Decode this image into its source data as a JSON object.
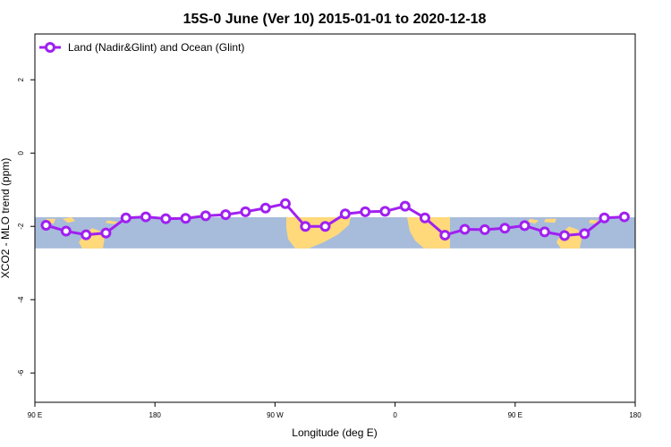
{
  "chart_data": {
    "type": "line",
    "title": "15S-0 June (Ver 10)   2015-01-01 to 2020-12-18",
    "xlabel": "Longitude (deg E)",
    "ylabel": "XCO2 - MLO trend (ppm)",
    "xlim": [
      90,
      450
    ],
    "ylim": [
      -6.8,
      3.25
    ],
    "x_ticks": [
      {
        "value": 90,
        "label": "90 E"
      },
      {
        "value": 162,
        "label": "180"
      },
      {
        "value": 234,
        "label": "90 W"
      },
      {
        "value": 306,
        "label": "0"
      },
      {
        "value": 378,
        "label": "90 E"
      },
      {
        "value": 450,
        "label": "180"
      }
    ],
    "y_ticks": [
      {
        "value": 2,
        "label": "2"
      },
      {
        "value": 0,
        "label": "0"
      },
      {
        "value": -2,
        "label": "-2"
      },
      {
        "value": -4,
        "label": "-4"
      },
      {
        "value": -6,
        "label": "-6"
      }
    ],
    "map_band": {
      "ymin": -2.6,
      "ymax": -1.75,
      "ocean_color": "#a7bcdb",
      "land_color": "#ffd97a"
    },
    "series": [
      {
        "name": "Land (Nadir&Glint) and Ocean (Glint)",
        "color": "#a020f0",
        "x": [
          96.7,
          108.7,
          120.7,
          132.6,
          144.6,
          156.5,
          168.5,
          180.4,
          192.4,
          204.4,
          216.3,
          228.3,
          240.2,
          252.2,
          264.1,
          276.1,
          288.1,
          300.0,
          312.0,
          323.9,
          335.9,
          347.8,
          359.8,
          371.8,
          383.7,
          395.7,
          407.6,
          419.6,
          431.5,
          443.5
        ],
        "y": [
          -1.97,
          -2.13,
          -2.23,
          -2.18,
          -1.77,
          -1.74,
          -1.79,
          -1.78,
          -1.71,
          -1.68,
          -1.6,
          -1.5,
          -1.38,
          -2.0,
          -2.0,
          -1.66,
          -1.6,
          -1.59,
          -1.45,
          -1.77,
          -2.24,
          -2.08,
          -2.09,
          -2.05,
          -1.98,
          -2.15,
          -2.25,
          -2.2,
          -1.77,
          -1.74
        ]
      }
    ],
    "legend_position": "top-left"
  }
}
